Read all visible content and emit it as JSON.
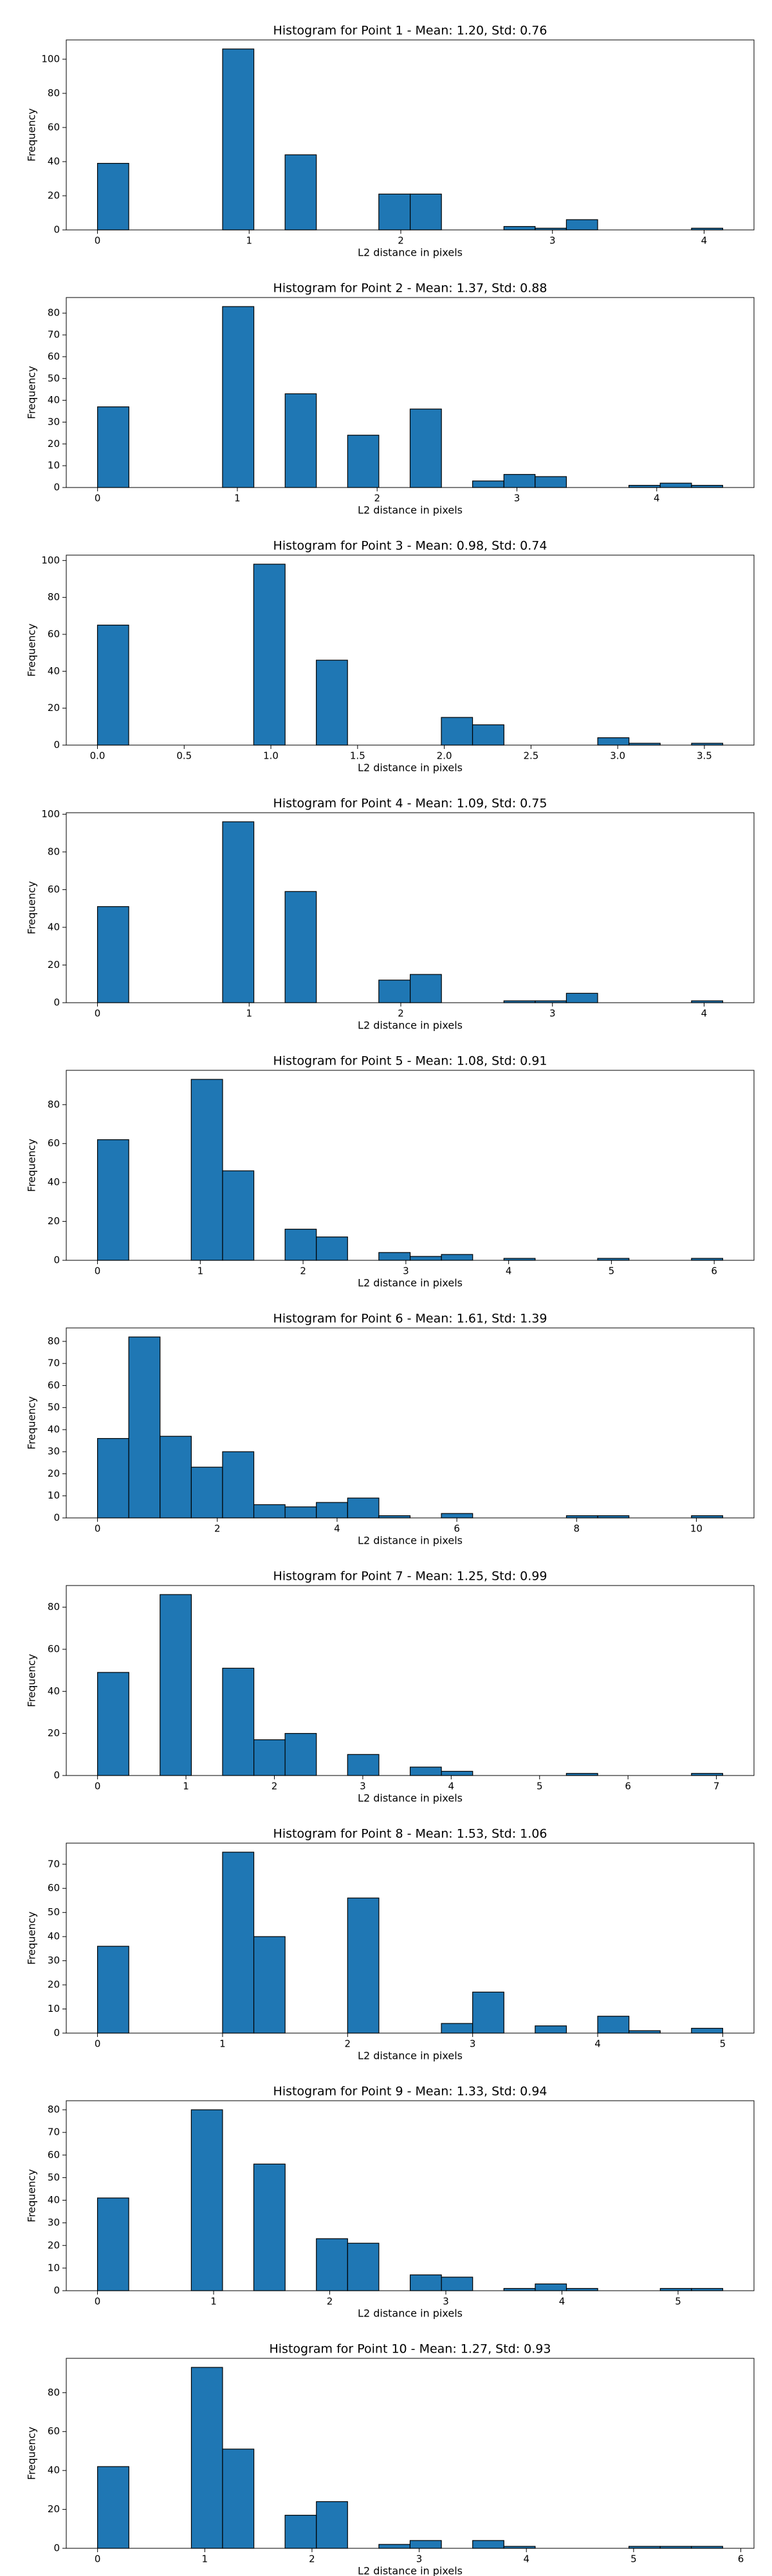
{
  "chart_data": [
    {
      "type": "histogram",
      "title": "Histogram for Point 1 - Mean: 1.20, Std: 0.76",
      "xlabel": "L2 distance in pixels",
      "ylabel": "Frequency",
      "color": "#1f77b4",
      "edgecolor": "#000000",
      "bins": [
        0,
        0.206,
        0.412,
        0.618,
        0.825,
        1.031,
        1.237,
        1.443,
        1.649,
        1.855,
        2.062,
        2.268,
        2.474,
        2.68,
        2.886,
        3.092,
        3.298,
        3.505,
        3.711,
        3.917,
        4.123
      ],
      "counts": [
        39,
        0,
        0,
        0,
        106,
        0,
        44,
        0,
        0,
        21,
        21,
        0,
        0,
        2,
        1,
        6,
        0,
        0,
        0,
        1
      ],
      "xlim": [
        -0.206,
        4.329
      ],
      "xticks": [
        0,
        1,
        2,
        3,
        4
      ],
      "ylim": [
        0,
        111.3
      ],
      "yticks": [
        0,
        20,
        40,
        60,
        80,
        100
      ]
    },
    {
      "type": "histogram",
      "title": "Histogram for Point 2 - Mean: 1.37, Std: 0.88",
      "xlabel": "L2 distance in pixels",
      "ylabel": "Frequency",
      "color": "#1f77b4",
      "edgecolor": "#000000",
      "bins": [
        0,
        0.224,
        0.447,
        0.671,
        0.894,
        1.118,
        1.342,
        1.565,
        1.789,
        2.012,
        2.236,
        2.46,
        2.683,
        2.907,
        3.13,
        3.354,
        3.578,
        3.801,
        4.025,
        4.249,
        4.472
      ],
      "counts": [
        37,
        0,
        0,
        0,
        83,
        0,
        43,
        0,
        24,
        0,
        36,
        0,
        3,
        6,
        5,
        0,
        0,
        1,
        2,
        1
      ],
      "xlim": [
        -0.224,
        4.696
      ],
      "xticks": [
        0,
        1,
        2,
        3,
        4
      ],
      "ylim": [
        0,
        87.15
      ],
      "yticks": [
        0,
        10,
        20,
        30,
        40,
        50,
        60,
        70,
        80
      ]
    },
    {
      "type": "histogram",
      "title": "Histogram for Point 3 - Mean: 0.98, Std: 0.74",
      "xlabel": "L2 distance in pixels",
      "ylabel": "Frequency",
      "color": "#1f77b4",
      "edgecolor": "#000000",
      "bins": [
        0,
        0.18,
        0.361,
        0.541,
        0.721,
        0.901,
        1.082,
        1.262,
        1.442,
        1.623,
        1.803,
        1.983,
        2.163,
        2.344,
        2.524,
        2.704,
        2.885,
        3.065,
        3.245,
        3.426,
        3.606
      ],
      "counts": [
        65,
        0,
        0,
        0,
        0,
        98,
        0,
        46,
        0,
        0,
        0,
        15,
        11,
        0,
        0,
        0,
        4,
        1,
        0,
        1
      ],
      "xlim": [
        -0.18,
        3.786
      ],
      "xticks": [
        {
          "value": 0,
          "label": "0.0"
        },
        0.5,
        {
          "value": 1,
          "label": "1.0"
        },
        1.5,
        {
          "value": 2,
          "label": "2.0"
        },
        2.5,
        {
          "value": 3,
          "label": "3.0"
        },
        3.5
      ],
      "ylim": [
        0,
        102.9
      ],
      "yticks": [
        0,
        20,
        40,
        60,
        80,
        100
      ]
    },
    {
      "type": "histogram",
      "title": "Histogram for Point 4 - Mean: 1.09, Std: 0.75",
      "xlabel": "L2 distance in pixels",
      "ylabel": "Frequency",
      "color": "#1f77b4",
      "edgecolor": "#000000",
      "bins": [
        0,
        0.206,
        0.412,
        0.618,
        0.825,
        1.031,
        1.237,
        1.443,
        1.649,
        1.855,
        2.062,
        2.268,
        2.474,
        2.68,
        2.886,
        3.092,
        3.298,
        3.505,
        3.711,
        3.917,
        4.123
      ],
      "counts": [
        51,
        0,
        0,
        0,
        96,
        0,
        59,
        0,
        0,
        12,
        15,
        0,
        0,
        1,
        1,
        5,
        0,
        0,
        0,
        1
      ],
      "xlim": [
        -0.206,
        4.329
      ],
      "xticks": [
        0,
        1,
        2,
        3,
        4
      ],
      "ylim": [
        0,
        100.8
      ],
      "yticks": [
        0,
        20,
        40,
        60,
        80,
        100
      ]
    },
    {
      "type": "histogram",
      "title": "Histogram for Point 5 - Mean: 1.08, Std: 0.91",
      "xlabel": "L2 distance in pixels",
      "ylabel": "Frequency",
      "color": "#1f77b4",
      "edgecolor": "#000000",
      "bins": [
        0,
        0.304,
        0.608,
        0.912,
        1.217,
        1.521,
        1.825,
        2.129,
        2.433,
        2.737,
        3.042,
        3.346,
        3.65,
        3.954,
        4.258,
        4.562,
        4.866,
        5.171,
        5.475,
        5.779,
        6.083
      ],
      "counts": [
        62,
        0,
        0,
        93,
        46,
        0,
        16,
        12,
        0,
        4,
        2,
        3,
        0,
        1,
        0,
        0,
        1,
        0,
        0,
        1
      ],
      "xlim": [
        -0.304,
        6.387
      ],
      "xticks": [
        0,
        1,
        2,
        3,
        4,
        5,
        6
      ],
      "ylim": [
        0,
        97.65
      ],
      "yticks": [
        0,
        20,
        40,
        60,
        80
      ]
    },
    {
      "type": "histogram",
      "title": "Histogram for Point 6 - Mean: 1.61, Std: 1.39",
      "xlabel": "L2 distance in pixels",
      "ylabel": "Frequency",
      "color": "#1f77b4",
      "edgecolor": "#000000",
      "bins": [
        0,
        0.522,
        1.044,
        1.566,
        2.088,
        2.61,
        3.132,
        3.654,
        4.176,
        4.698,
        5.22,
        5.742,
        6.264,
        6.786,
        7.308,
        7.83,
        8.352,
        8.874,
        9.396,
        9.918,
        10.44
      ],
      "counts": [
        36,
        82,
        37,
        23,
        30,
        6,
        5,
        7,
        9,
        1,
        0,
        2,
        0,
        0,
        0,
        1,
        1,
        0,
        0,
        1
      ],
      "xlim": [
        -0.522,
        10.962
      ],
      "xticks": [
        0,
        2,
        4,
        6,
        8,
        10
      ],
      "ylim": [
        0,
        86.1
      ],
      "yticks": [
        0,
        10,
        20,
        30,
        40,
        50,
        60,
        70,
        80
      ]
    },
    {
      "type": "histogram",
      "title": "Histogram for Point 7 - Mean: 1.25, Std: 0.99",
      "xlabel": "L2 distance in pixels",
      "ylabel": "Frequency",
      "color": "#1f77b4",
      "edgecolor": "#000000",
      "bins": [
        0,
        0.354,
        0.707,
        1.061,
        1.414,
        1.768,
        2.121,
        2.475,
        2.828,
        3.182,
        3.536,
        3.889,
        4.243,
        4.596,
        4.95,
        5.303,
        5.657,
        6.01,
        6.364,
        6.718,
        7.071
      ],
      "counts": [
        49,
        0,
        86,
        0,
        51,
        17,
        20,
        0,
        10,
        0,
        4,
        2,
        0,
        0,
        0,
        1,
        0,
        0,
        0,
        1
      ],
      "xlim": [
        -0.354,
        7.425
      ],
      "xticks": [
        0,
        1,
        2,
        3,
        4,
        5,
        6,
        7
      ],
      "ylim": [
        0,
        90.3
      ],
      "yticks": [
        0,
        20,
        40,
        60,
        80
      ]
    },
    {
      "type": "histogram",
      "title": "Histogram for Point 8 - Mean: 1.53, Std: 1.06",
      "xlabel": "L2 distance in pixels",
      "ylabel": "Frequency",
      "color": "#1f77b4",
      "edgecolor": "#000000",
      "bins": [
        0,
        0.25,
        0.5,
        0.75,
        1,
        1.25,
        1.5,
        1.75,
        2,
        2.25,
        2.5,
        2.75,
        3,
        3.25,
        3.5,
        3.75,
        4,
        4.25,
        4.5,
        4.75,
        5
      ],
      "counts": [
        36,
        0,
        0,
        0,
        75,
        40,
        0,
        0,
        56,
        0,
        0,
        4,
        17,
        0,
        3,
        0,
        7,
        1,
        0,
        2
      ],
      "xlim": [
        -0.25,
        5.25
      ],
      "xticks": [
        0,
        1,
        2,
        3,
        4,
        5
      ],
      "ylim": [
        0,
        78.75
      ],
      "yticks": [
        0,
        10,
        20,
        30,
        40,
        50,
        60,
        70
      ]
    },
    {
      "type": "histogram",
      "title": "Histogram for Point 9 - Mean: 1.33, Std: 0.94",
      "xlabel": "L2 distance in pixels",
      "ylabel": "Frequency",
      "color": "#1f77b4",
      "edgecolor": "#000000",
      "bins": [
        0,
        0.269,
        0.539,
        0.808,
        1.077,
        1.346,
        1.616,
        1.885,
        2.154,
        2.423,
        2.693,
        2.962,
        3.231,
        3.5,
        3.77,
        4.039,
        4.308,
        4.577,
        4.847,
        5.116,
        5.385
      ],
      "counts": [
        41,
        0,
        0,
        80,
        0,
        56,
        0,
        23,
        21,
        0,
        7,
        6,
        0,
        1,
        3,
        1,
        0,
        0,
        1,
        1
      ],
      "xlim": [
        -0.269,
        5.654
      ],
      "xticks": [
        0,
        1,
        2,
        3,
        4,
        5
      ],
      "ylim": [
        0,
        84
      ],
      "yticks": [
        0,
        10,
        20,
        30,
        40,
        50,
        60,
        70,
        80
      ]
    },
    {
      "type": "histogram",
      "title": "Histogram for Point 10 - Mean: 1.27, Std: 0.93",
      "xlabel": "L2 distance in pixels",
      "ylabel": "Frequency",
      "color": "#1f77b4",
      "edgecolor": "#000000",
      "bins": [
        0,
        0.292,
        0.583,
        0.875,
        1.166,
        1.458,
        1.749,
        2.041,
        2.332,
        2.624,
        2.915,
        3.207,
        3.499,
        3.79,
        4.082,
        4.373,
        4.665,
        4.956,
        5.248,
        5.539,
        5.831
      ],
      "counts": [
        42,
        0,
        0,
        93,
        51,
        0,
        17,
        24,
        0,
        2,
        4,
        0,
        4,
        1,
        0,
        0,
        0,
        1,
        1,
        1
      ],
      "xlim": [
        -0.292,
        6.123
      ],
      "xticks": [
        0,
        1,
        2,
        3,
        4,
        5,
        6
      ],
      "ylim": [
        0,
        97.65
      ],
      "yticks": [
        0,
        20,
        40,
        60,
        80
      ]
    }
  ]
}
